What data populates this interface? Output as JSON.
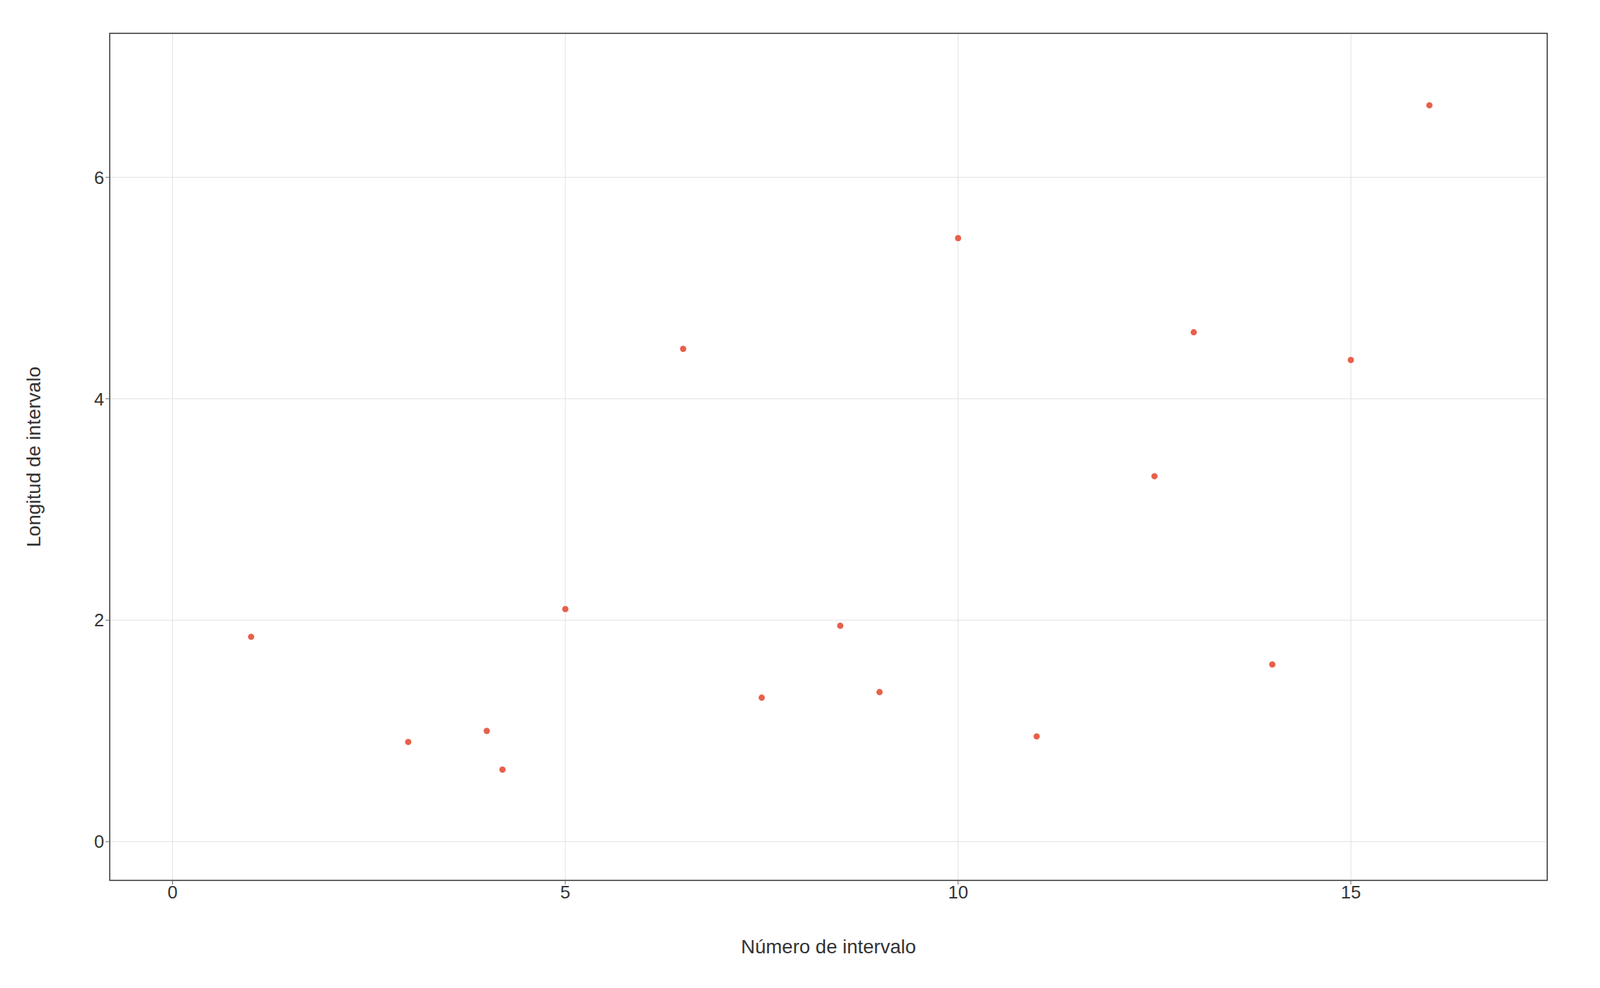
{
  "chart_data": {
    "type": "scatter",
    "x": [
      1,
      3,
      4,
      4.2,
      5,
      6.5,
      7.5,
      8.5,
      9,
      10,
      11,
      12.5,
      13,
      14,
      15,
      16
    ],
    "y": [
      1.85,
      0.9,
      1.0,
      0.65,
      2.1,
      4.45,
      1.3,
      1.95,
      1.35,
      5.45,
      0.95,
      3.3,
      4.6,
      1.6,
      4.35,
      6.65
    ],
    "color": "#E8604A",
    "xlabel": "Número de intervalo",
    "ylabel": "Longitud de intervalo",
    "xlim": [
      -0.8,
      17.5
    ],
    "ylim": [
      -0.35,
      7.3
    ],
    "xticks": [
      0,
      5,
      10,
      15
    ],
    "yticks": [
      0,
      2,
      4,
      6
    ],
    "grid": true
  }
}
